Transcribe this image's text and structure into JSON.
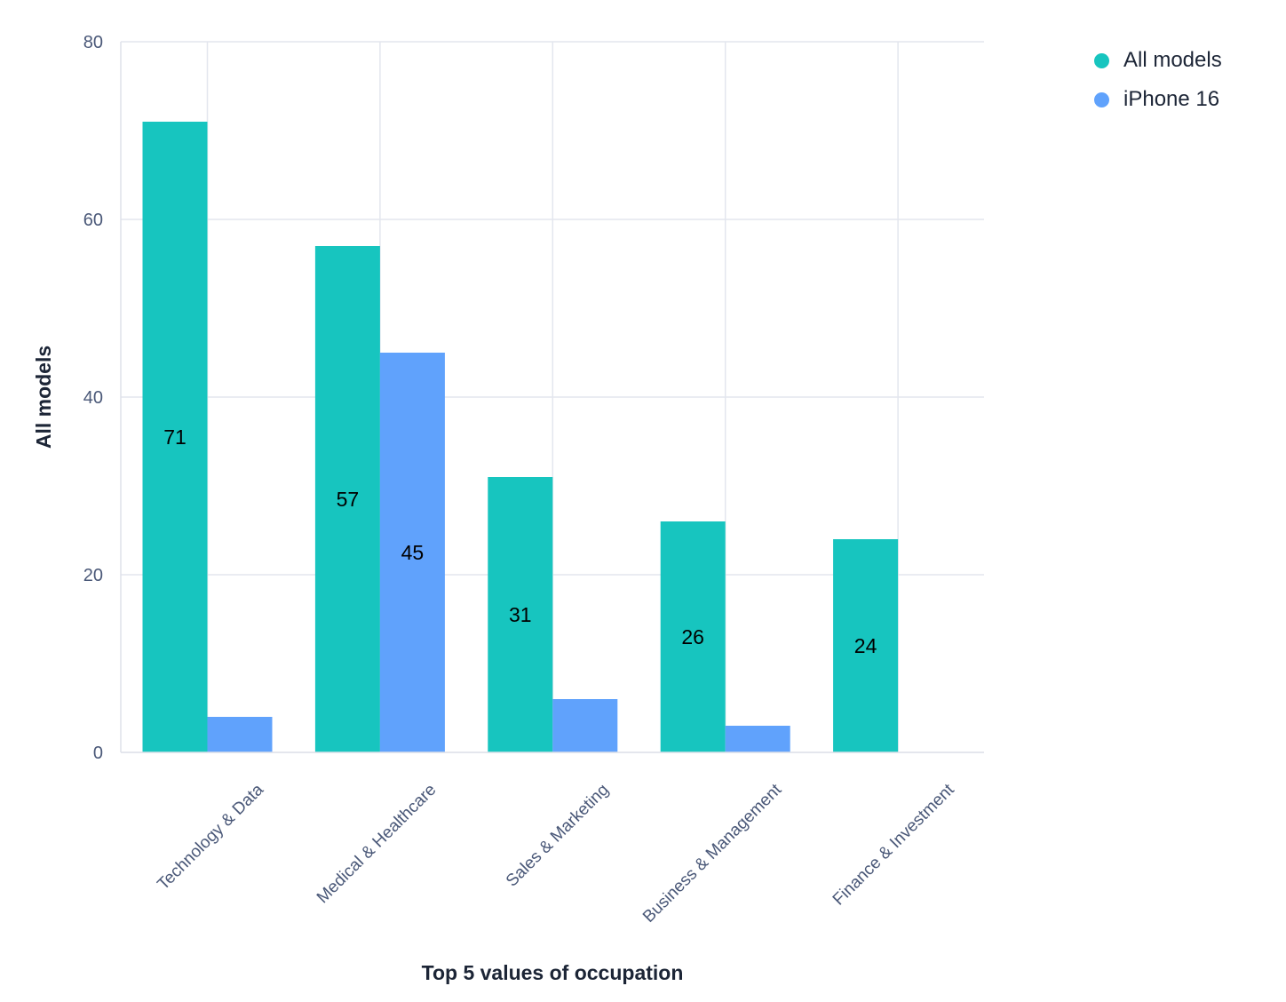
{
  "chart_data": {
    "type": "bar",
    "categories": [
      "Technology & Data",
      "Medical & Healthcare",
      "Sales & Marketing",
      "Business & Management",
      "Finance & Investment"
    ],
    "series": [
      {
        "name": "All models",
        "color": "#17c5bf",
        "values": [
          71,
          57,
          31,
          26,
          24
        ],
        "labels": [
          "71",
          "57",
          "31",
          "26",
          "24"
        ]
      },
      {
        "name": "iPhone 16",
        "color": "#60a2fc",
        "values": [
          4,
          45,
          6,
          3,
          0
        ],
        "labels": [
          "",
          "45",
          "",
          "",
          ""
        ]
      }
    ],
    "xlabel": "Top 5 values of occupation",
    "ylabel": "All models",
    "ylim": [
      0,
      80
    ],
    "yticks": [
      0,
      20,
      40,
      60,
      80
    ],
    "ytick_labels": [
      "0",
      "20",
      "40",
      "60",
      "80"
    ],
    "grid": true,
    "legend_position": "top-right"
  }
}
